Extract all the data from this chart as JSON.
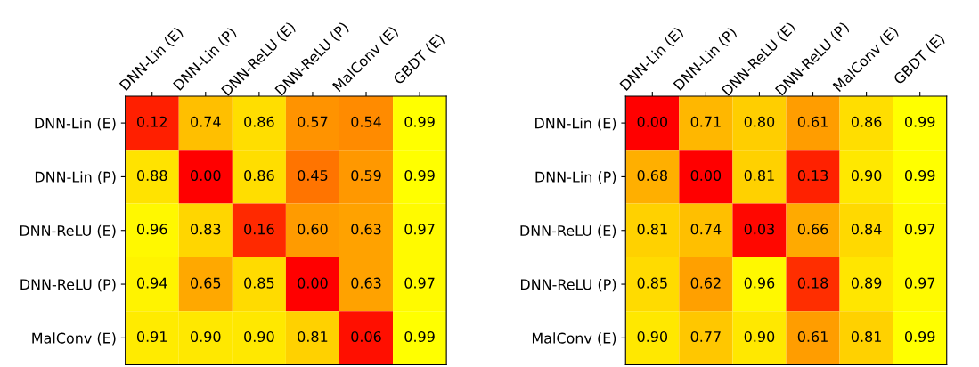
{
  "chart_data": [
    {
      "type": "heatmap",
      "categories": [
        "DNN-Lin (E)",
        "DNN-Lin (P)",
        "DNN-ReLU (E)",
        "DNN-ReLU (P)",
        "MalConv (E)",
        "GBDT (E)"
      ],
      "y_categories": [
        "DNN-Lin (E)",
        "DNN-Lin (P)",
        "DNN-ReLU (E)",
        "DNN-ReLU (P)",
        "MalConv (E)"
      ],
      "cells": [
        [
          0.12,
          0.74,
          0.86,
          0.57,
          0.54,
          0.99
        ],
        [
          0.88,
          0.0,
          0.86,
          0.45,
          0.59,
          0.99
        ],
        [
          0.96,
          0.83,
          0.16,
          0.6,
          0.63,
          0.97
        ],
        [
          0.94,
          0.65,
          0.85,
          0.0,
          0.63,
          0.97
        ],
        [
          0.91,
          0.9,
          0.9,
          0.81,
          0.06,
          0.99
        ]
      ],
      "cell_labels": [
        [
          "0.12",
          "0.74",
          "0.86",
          "0.57",
          "0.54",
          "0.99"
        ],
        [
          "0.88",
          "0.00",
          "0.86",
          "0.45",
          "0.59",
          "0.99"
        ],
        [
          "0.96",
          "0.83",
          "0.16",
          "0.60",
          "0.63",
          "0.97"
        ],
        [
          "0.94",
          "0.65",
          "0.85",
          "0.00",
          "0.63",
          "0.97"
        ],
        [
          "0.91",
          "0.90",
          "0.90",
          "0.81",
          "0.06",
          "0.99"
        ]
      ]
    },
    {
      "type": "heatmap",
      "categories": [
        "DNN-Lin (E)",
        "DNN-Lin (P)",
        "DNN-ReLU (E)",
        "DNN-ReLU (P)",
        "MalConv (E)",
        "GBDT (E)"
      ],
      "y_categories": [
        "DNN-Lin (E)",
        "DNN-Lin (P)",
        "DNN-ReLU (E)",
        "DNN-ReLU (P)",
        "MalConv (E)"
      ],
      "cells": [
        [
          0.0,
          0.71,
          0.8,
          0.61,
          0.86,
          0.99
        ],
        [
          0.68,
          0.0,
          0.81,
          0.13,
          0.9,
          0.99
        ],
        [
          0.81,
          0.74,
          0.03,
          0.66,
          0.84,
          0.97
        ],
        [
          0.85,
          0.62,
          0.96,
          0.18,
          0.89,
          0.97
        ],
        [
          0.9,
          0.77,
          0.9,
          0.61,
          0.81,
          0.99
        ]
      ],
      "cell_labels": [
        [
          "0.00",
          "0.71",
          "0.80",
          "0.61",
          "0.86",
          "0.99"
        ],
        [
          "0.68",
          "0.00",
          "0.81",
          "0.13",
          "0.90",
          "0.99"
        ],
        [
          "0.81",
          "0.74",
          "0.03",
          "0.66",
          "0.84",
          "0.97"
        ],
        [
          "0.85",
          "0.62",
          "0.96",
          "0.18",
          "0.89",
          "0.97"
        ],
        [
          "0.90",
          "0.77",
          "0.90",
          "0.61",
          "0.81",
          "0.99"
        ]
      ]
    }
  ]
}
